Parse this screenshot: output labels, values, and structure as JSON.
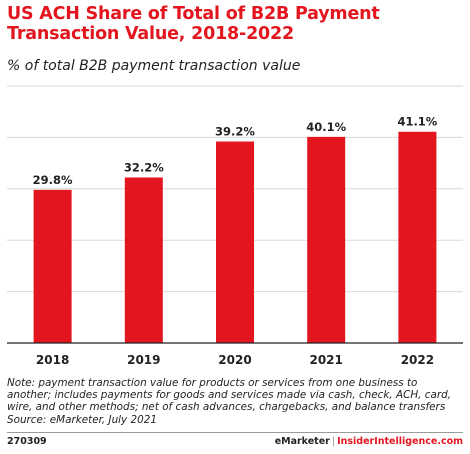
{
  "title": "US ACH Share of Total of B2B Payment Transaction Value, 2018-2022",
  "subtitle": "% of total B2B payment transaction value",
  "chart_data": {
    "type": "bar",
    "categories": [
      "2018",
      "2019",
      "2020",
      "2021",
      "2022"
    ],
    "values": [
      29.8,
      32.2,
      39.2,
      40.1,
      41.1
    ],
    "value_labels": [
      "29.8%",
      "32.2%",
      "39.2%",
      "40.1%",
      "41.1%"
    ],
    "ylim": [
      0,
      50
    ],
    "grid": true,
    "bar_color": "#e3161f"
  },
  "note": "Note: payment transaction value for products or services from one business to another; includes payments for goods and services made via cash, check, ACH, card, wire, and other methods; net of cash advances, chargebacks, and balance transfers",
  "source": "Source: eMarketer, July 2021",
  "footer": {
    "chart_id": "270309",
    "brand": "eMarketer",
    "separator": "|",
    "site": "InsiderIntelligence.com"
  },
  "colors": {
    "accent": "#e3161f",
    "text": "#222222",
    "grid": "#d9d9d9",
    "baseline": "#222222"
  }
}
